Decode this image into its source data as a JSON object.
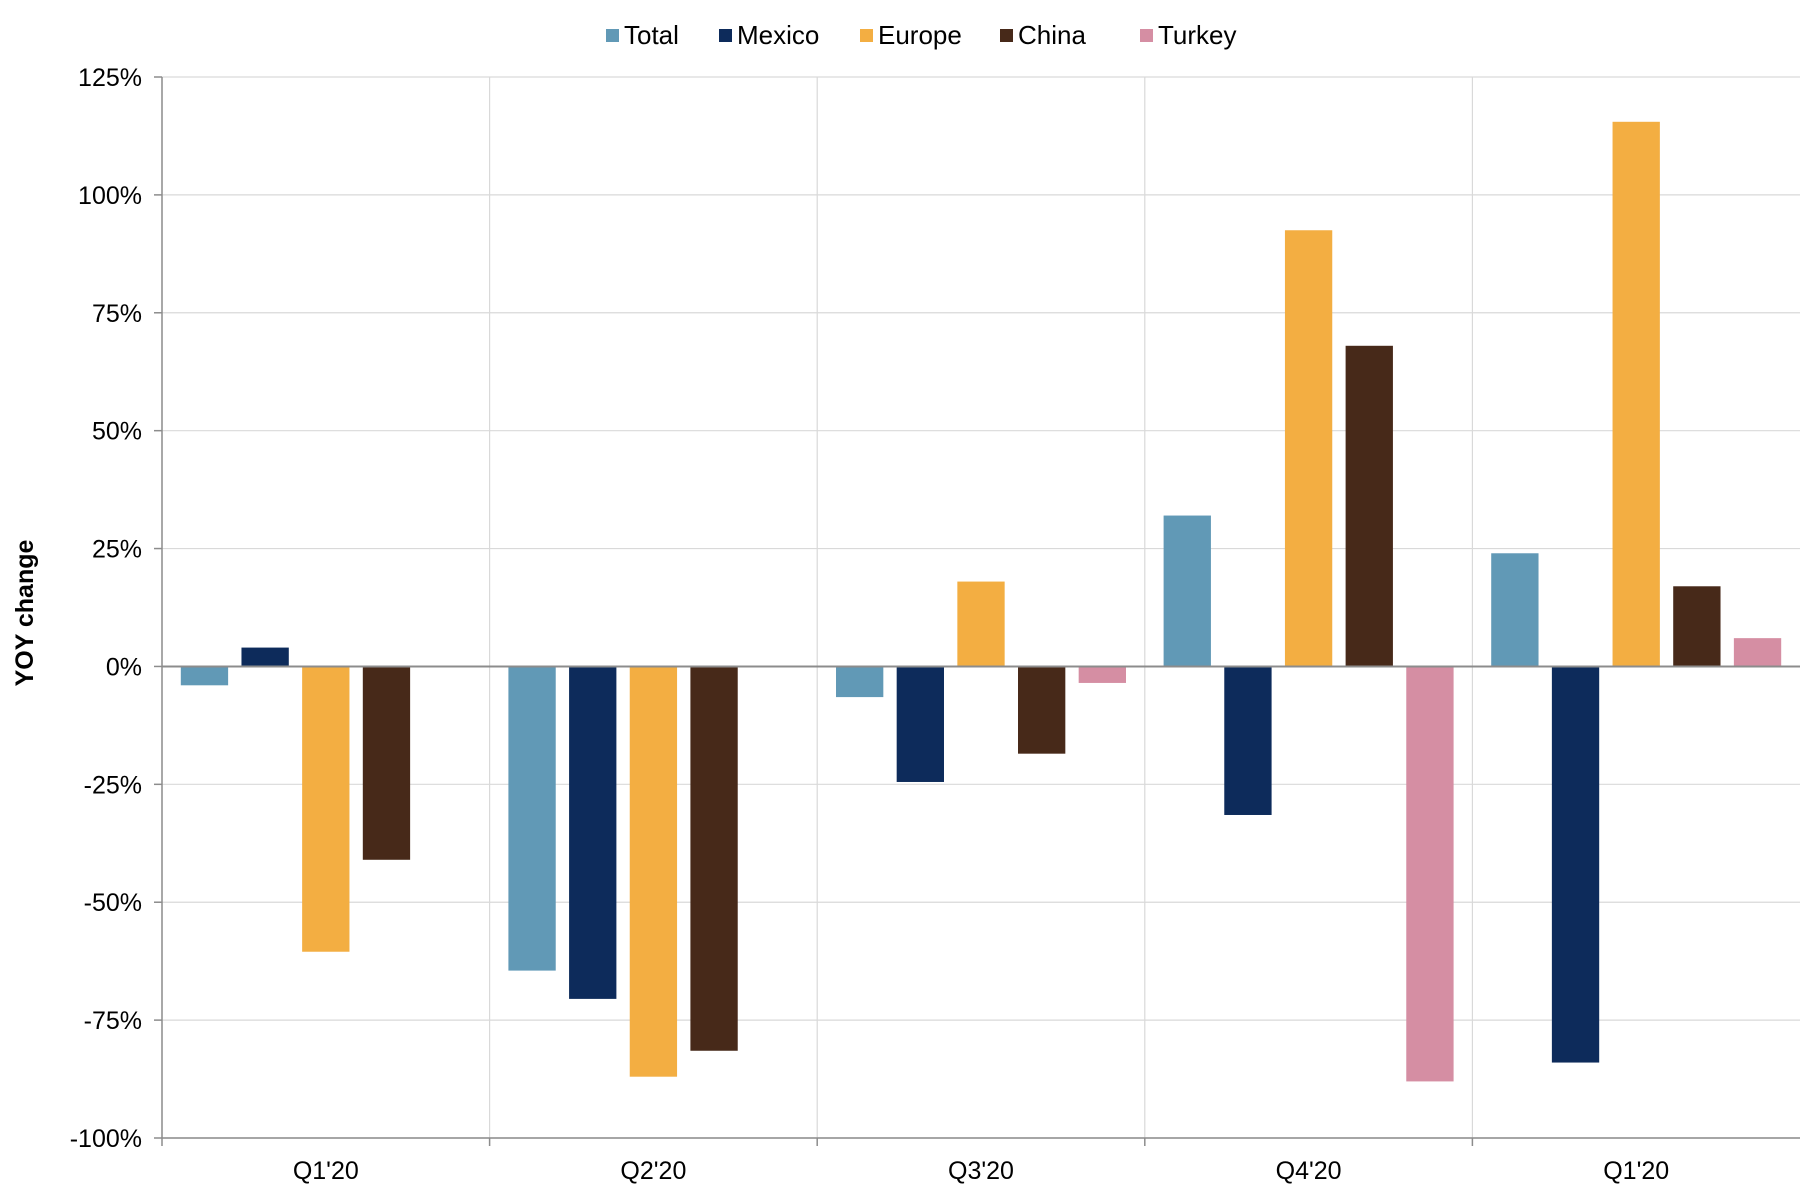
{
  "chart_data": {
    "type": "bar",
    "title": "",
    "xlabel": "",
    "ylabel": "YOY change",
    "ylim": [
      -100,
      125
    ],
    "yticks": [
      125,
      100,
      75,
      50,
      25,
      0,
      -25,
      -50,
      -75,
      -100
    ],
    "ytick_labels": [
      "125%",
      "100%",
      "75%",
      "50%",
      "25%",
      "0%",
      "-25%",
      "-50%",
      "-75%",
      "-100%"
    ],
    "grid": true,
    "legend_position": "top-center",
    "categories": [
      "Q1'20",
      "Q2'20",
      "Q3'20",
      "Q4'20",
      "Q1'20"
    ],
    "series": [
      {
        "name": "Total",
        "color": "#6199B6",
        "values": [
          -4,
          -64.5,
          -6.5,
          32,
          24
        ]
      },
      {
        "name": "Mexico",
        "color": "#0D2B5B",
        "values": [
          4,
          -70.5,
          -24.5,
          -31.5,
          -84
        ]
      },
      {
        "name": "Europe",
        "color": "#F3AE42",
        "values": [
          -60.5,
          -87,
          18,
          92.5,
          115.5
        ]
      },
      {
        "name": "China",
        "color": "#472919",
        "values": [
          -41,
          -81.5,
          -18.5,
          68,
          17
        ]
      },
      {
        "name": "Turkey",
        "color": "#D58EA3",
        "values": [
          null,
          null,
          -3.5,
          -88,
          6
        ]
      }
    ]
  }
}
